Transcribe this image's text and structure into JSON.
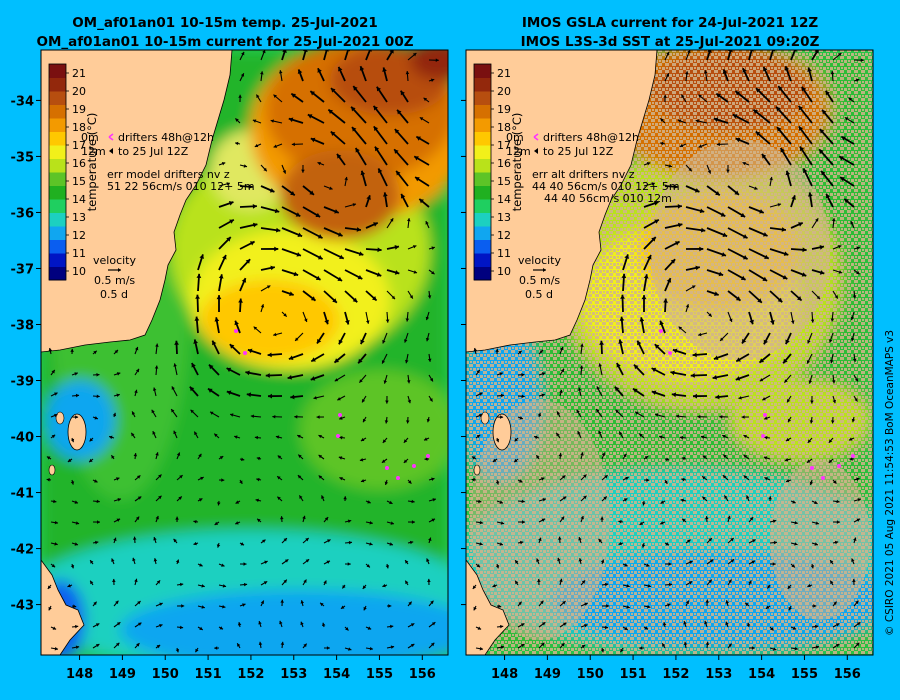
{
  "colors": {
    "background": "#00bfff",
    "land": "#ffcc99",
    "missing_data": "#d2b48c",
    "drifter": "#ff33ff",
    "scale": [
      "#00007f",
      "#0015c4",
      "#0a5ef0",
      "#10a6f0",
      "#1cd0c0",
      "#1fcf60",
      "#20b020",
      "#5dc427",
      "#b9e21a",
      "#f2f01a",
      "#ffc800",
      "#f39a00",
      "#d67000",
      "#b74e0f",
      "#93280c",
      "#7a1010"
    ]
  },
  "left_panel": {
    "title_line1": "OM_af01an01 10-15m temp. 25-Jul-2021",
    "title_line2": "OM_af01an01 10-15m current for 25-Jul-2021 00Z",
    "legend": {
      "drifter_line1_depth": "0m",
      "drifter_line1_text": "drifters 48h@12h",
      "drifter_line2_depth": "12m",
      "drifter_line2_text": "to 25 Jul 12Z",
      "err_title": "err model drifters nv z",
      "err_line1": "51 22 56cm/s 010 12+ 5m",
      "err_line2": ""
    }
  },
  "right_panel": {
    "title_line1": "IMOS GSLA current for 24-Jul-2021 12Z",
    "title_line2": "IMOS L3S-3d SST at 25-Jul-2021 09:20Z",
    "legend": {
      "drifter_line1_depth": "0m",
      "drifter_line1_text": "drifters 48h@12h",
      "drifter_line2_depth": "12m",
      "drifter_line2_text": "to 25 Jul 12Z",
      "err_title": "err alt drifters nv z",
      "err_line1": "44 40 56cm/s 010 12+ 5m",
      "err_line2": "44 40 56cm/s 010 12m"
    }
  },
  "colorbar": {
    "label": "temperature (°C)",
    "ticks": [
      "10",
      "11",
      "12",
      "13",
      "14",
      "15",
      "16",
      "17",
      "18",
      "19",
      "20",
      "21"
    ],
    "min": 9.5,
    "max": 21.5
  },
  "velocity_key": {
    "title": "velocity",
    "speed": "0.5 m/s",
    "duration": "0.5 d"
  },
  "map": {
    "lon_ticks": [
      "148",
      "149",
      "150",
      "151",
      "152",
      "153",
      "154",
      "155",
      "156"
    ],
    "lat_ticks": [
      "-34",
      "-35",
      "-36",
      "-37",
      "-38",
      "-39",
      "-40",
      "-41",
      "-42",
      "-43"
    ],
    "lon_range": [
      147.1,
      156.6
    ],
    "lat_range": [
      -43.9,
      -33.1
    ]
  },
  "credit": "© CSIRO 2021  05 Aug 2021 11:54:53 BoM OceanMAPS v3"
}
